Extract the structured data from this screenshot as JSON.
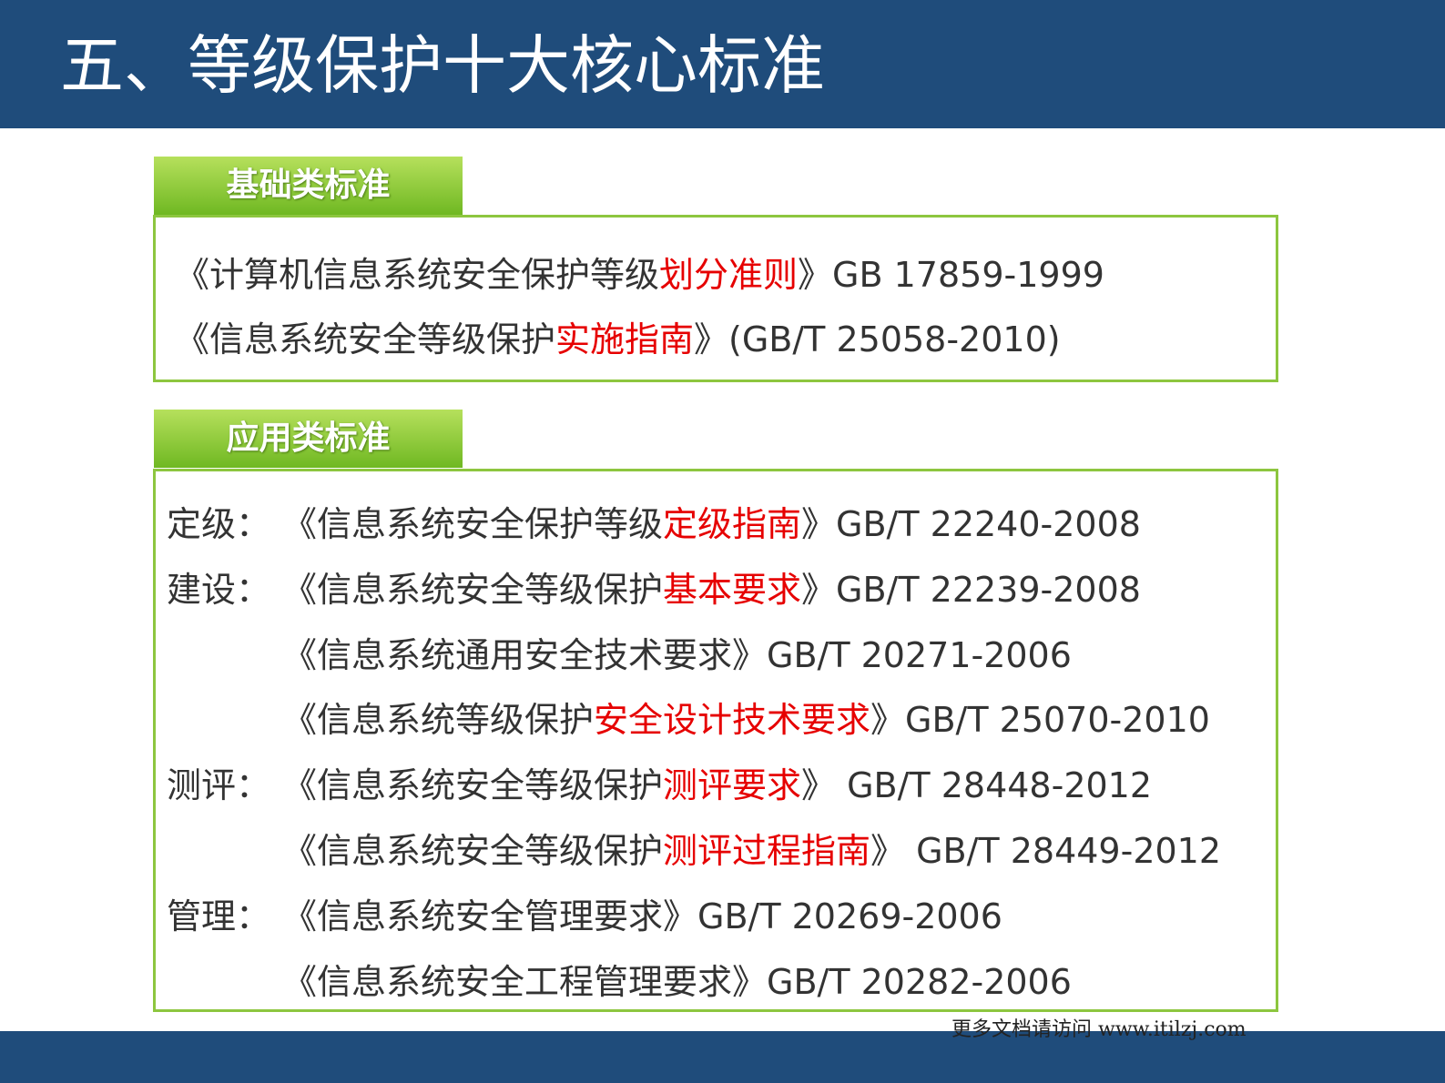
{
  "header": {
    "title": "五、等级保护十大核心标准"
  },
  "sections": [
    {
      "label": "基础类标准",
      "lines": [
        {
          "parts": [
            {
              "text": "《计算机信息系统安全保护等级",
              "color": "#333333"
            },
            {
              "text": "划分准则",
              "color": "#e60000"
            },
            {
              "text": "》GB 17859-1999",
              "color": "#333333"
            }
          ]
        },
        {
          "parts": [
            {
              "text": "《信息系统安全等级保护",
              "color": "#333333"
            },
            {
              "text": "实施指南",
              "color": "#e60000"
            },
            {
              "text": "》(GB/T 25058-2010)",
              "color": "#333333"
            }
          ]
        }
      ]
    },
    {
      "label": "应用类标准",
      "lines": [
        {
          "prefix": "定级：",
          "parts": [
            {
              "text": "《信息系统安全保护等级",
              "color": "#333333"
            },
            {
              "text": "定级指南",
              "color": "#e60000"
            },
            {
              "text": "》GB/T 22240-2008",
              "color": "#333333"
            }
          ]
        },
        {
          "prefix": "建设：",
          "parts": [
            {
              "text": "《信息系统安全等级保护",
              "color": "#333333"
            },
            {
              "text": "基本要求",
              "color": "#e60000"
            },
            {
              "text": "》GB/T 22239-2008",
              "color": "#333333"
            }
          ]
        },
        {
          "parts": [
            {
              "text": "《信息系统通用安全技术要求》GB/T 20271-2006",
              "color": "#333333"
            }
          ]
        },
        {
          "parts": [
            {
              "text": "《信息系统等级保护",
              "color": "#333333"
            },
            {
              "text": "安全设计技术要求",
              "color": "#e60000"
            },
            {
              "text": "》GB/T 25070-2010",
              "color": "#333333"
            }
          ]
        },
        {
          "prefix": "测评：",
          "parts": [
            {
              "text": "《信息系统安全等级保护",
              "color": "#333333"
            },
            {
              "text": "测评要求",
              "color": "#e60000"
            },
            {
              "text": "》 GB/T 28448-2012",
              "color": "#333333"
            }
          ]
        },
        {
          "parts": [
            {
              "text": "《信息系统安全等级保护",
              "color": "#333333"
            },
            {
              "text": "测评过程指南",
              "color": "#e60000"
            },
            {
              "text": "》 GB/T 28449-2012",
              "color": "#333333"
            }
          ]
        },
        {
          "prefix": "管理：",
          "parts": [
            {
              "text": "《信息系统安全管理要求》GB/T 20269-2006",
              "color": "#333333"
            }
          ]
        },
        {
          "parts": [
            {
              "text": "《信息系统安全工程管理要求》GB/T 20282-2006",
              "color": "#333333"
            }
          ]
        }
      ]
    }
  ],
  "footer": {
    "text": "更多文档请访问 www.itilzj.com"
  }
}
